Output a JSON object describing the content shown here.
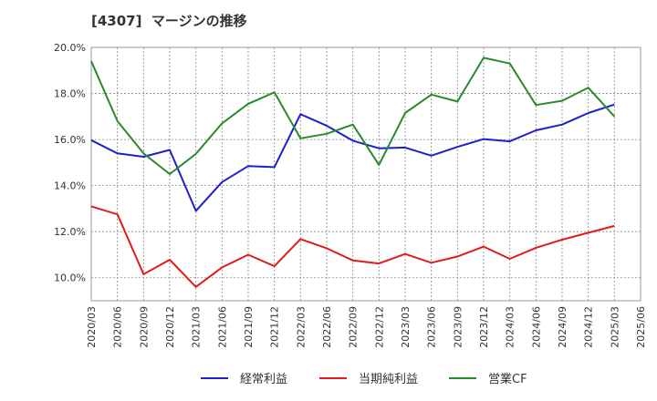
{
  "chart_data": {
    "type": "line",
    "title": "[4307]  マージンの推移",
    "xlabel": "",
    "ylabel": "",
    "ylim": [
      9.0,
      20.0
    ],
    "yticks": [
      10.0,
      12.0,
      14.0,
      16.0,
      18.0,
      20.0
    ],
    "ytick_labels": [
      "10.0%",
      "12.0%",
      "14.0%",
      "16.0%",
      "18.0%",
      "20.0%"
    ],
    "x_labels": [
      "2020/03",
      "2020/06",
      "2020/09",
      "2020/12",
      "2021/03",
      "2021/06",
      "2021/09",
      "2021/12",
      "2022/03",
      "2022/06",
      "2022/09",
      "2022/12",
      "2023/03",
      "2023/06",
      "2023/09",
      "2023/12",
      "2024/03",
      "2024/06",
      "2024/09",
      "2024/12",
      "2025/03",
      "2025/06"
    ],
    "grid": true,
    "legend_position": "bottom",
    "series": [
      {
        "name": "経常利益",
        "color": "#1f1fcc",
        "values": [
          15.97,
          15.4,
          15.25,
          15.55,
          12.9,
          14.15,
          14.85,
          14.8,
          17.1,
          16.6,
          15.95,
          15.62,
          15.65,
          15.3,
          15.68,
          16.02,
          15.92,
          16.4,
          16.65,
          17.15,
          17.52,
          null
        ]
      },
      {
        "name": "当期純利益",
        "color": "#e01b1b",
        "values": [
          13.1,
          12.75,
          10.15,
          10.78,
          9.6,
          10.45,
          11.0,
          10.5,
          11.68,
          11.28,
          10.75,
          10.62,
          11.03,
          10.65,
          10.92,
          11.35,
          10.82,
          11.3,
          11.65,
          11.95,
          12.25,
          null
        ]
      },
      {
        "name": "営業CF",
        "color": "#2a8a2a",
        "values": [
          19.4,
          16.8,
          15.4,
          14.5,
          15.38,
          16.7,
          17.55,
          18.05,
          16.05,
          16.25,
          16.65,
          14.9,
          17.15,
          17.95,
          17.65,
          19.55,
          19.3,
          17.5,
          17.68,
          18.25,
          17.0,
          null
        ]
      }
    ]
  }
}
